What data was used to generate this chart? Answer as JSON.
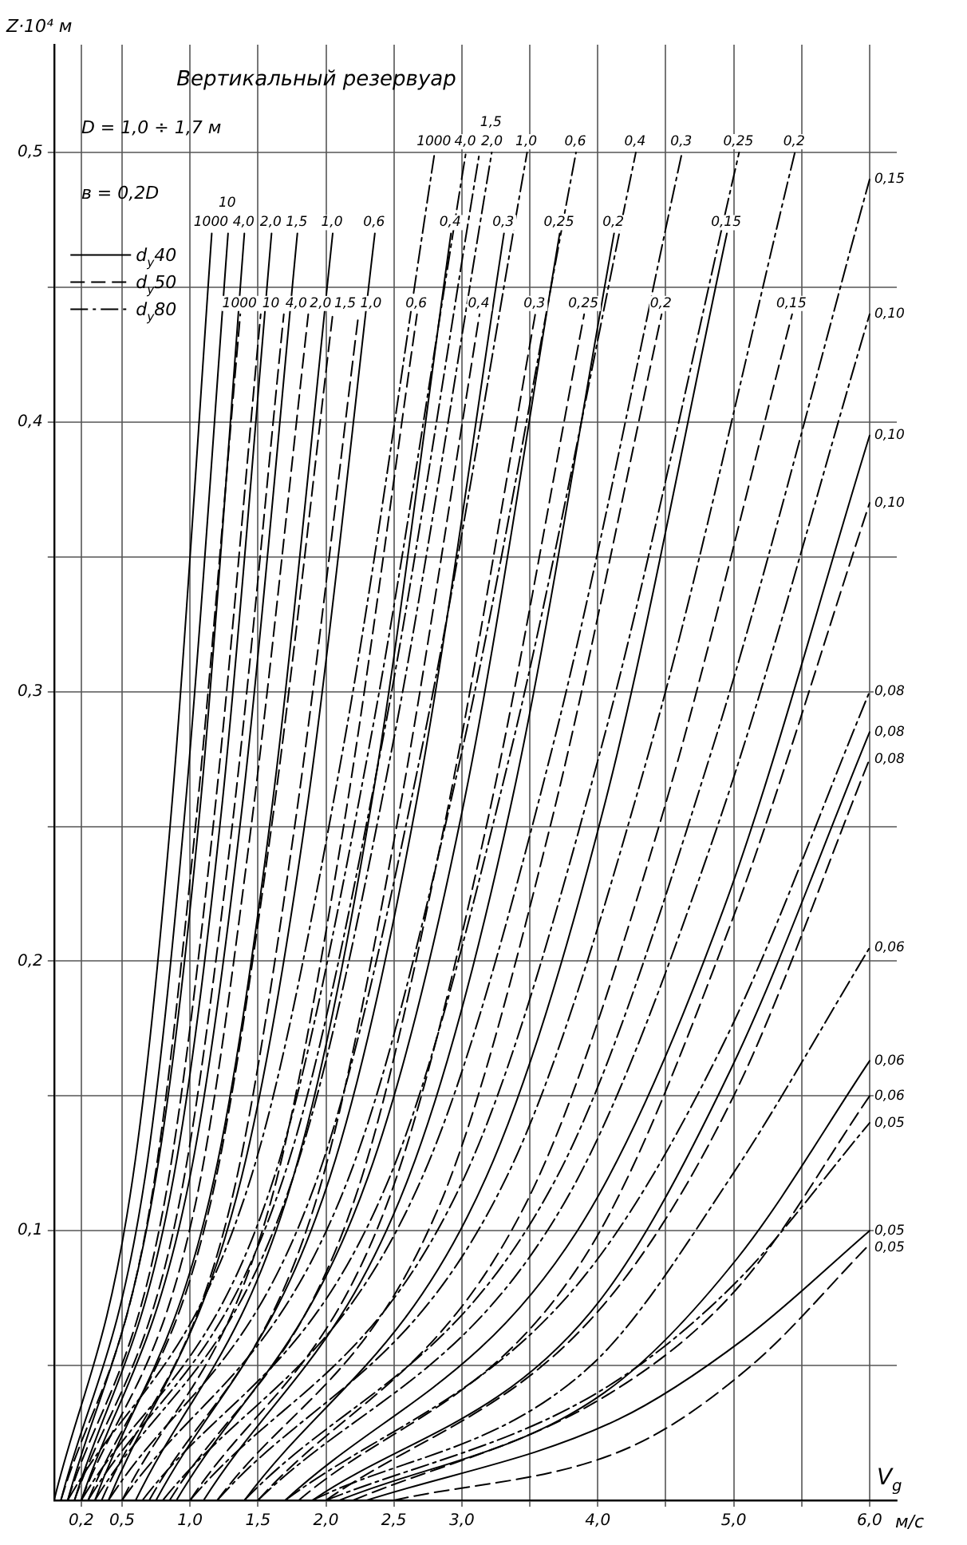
{
  "chart_data": {
    "type": "line",
    "title": "Вертикальный резервуар",
    "xlabel": "V$_{g}$",
    "ylabel": "Z·10⁴ м",
    "annotations": [
      "D = 1,0 ÷ 1,7 м",
      "в = 0,2D",
      "d$_{у}$40",
      "d$_{у}$50",
      "d$_{у}$80",
      "м/с"
    ],
    "xlim": [
      0,
      6.2
    ],
    "ylim": [
      0,
      0.54
    ],
    "xticks": [
      {
        "value": 0.2,
        "label": "0,2"
      },
      {
        "value": 0.5,
        "label": "0,5"
      },
      {
        "value": 1.0,
        "label": "1,0"
      },
      {
        "value": 1.5,
        "label": "1,5"
      },
      {
        "value": 2.0,
        "label": "2,0"
      },
      {
        "value": 2.5,
        "label": "2,5"
      },
      {
        "value": 3.0,
        "label": "3,0"
      },
      {
        "value": 3.5,
        "label": null
      },
      {
        "value": 4.0,
        "label": "4,0"
      },
      {
        "value": 4.5,
        "label": null
      },
      {
        "value": 5.0,
        "label": "5,0"
      },
      {
        "value": 5.5,
        "label": null
      },
      {
        "value": 6.0,
        "label": "6,0"
      }
    ],
    "yticks": [
      {
        "value": 0.05,
        "label": null
      },
      {
        "value": 0.1,
        "label": "0,1"
      },
      {
        "value": 0.15,
        "label": null
      },
      {
        "value": 0.2,
        "label": "0,2"
      },
      {
        "value": 0.25,
        "label": null
      },
      {
        "value": 0.3,
        "label": "0,3"
      },
      {
        "value": 0.35,
        "label": null
      },
      {
        "value": 0.4,
        "label": "0,4"
      },
      {
        "value": 0.45,
        "label": null
      },
      {
        "value": 0.5,
        "label": "0,5"
      }
    ],
    "grid": true,
    "series": [
      {
        "name": "1000",
        "color": "#000000",
        "line_style": "solid",
        "x": [
          0,
          0.58,
          0.87,
          1.16
        ],
        "values": [
          0,
          0.12,
          0.26,
          0.47
        ]
      },
      {
        "name": "10",
        "color": "#000000",
        "line_style": "solid",
        "x": [
          0.05,
          0.67,
          0.97,
          1.28
        ],
        "values": [
          0,
          0.12,
          0.26,
          0.47
        ]
      },
      {
        "name": "4,0",
        "color": "#000000",
        "line_style": "solid",
        "x": [
          0.1,
          0.75,
          1.08,
          1.4
        ],
        "values": [
          0,
          0.12,
          0.26,
          0.47
        ]
      },
      {
        "name": "2,0",
        "color": "#000000",
        "line_style": "solid",
        "x": [
          0.15,
          0.88,
          1.24,
          1.6
        ],
        "values": [
          0,
          0.12,
          0.26,
          0.47
        ]
      },
      {
        "name": "1,5",
        "color": "#000000",
        "line_style": "solid",
        "x": [
          0.2,
          1.0,
          1.39,
          1.79
        ],
        "values": [
          0,
          0.12,
          0.26,
          0.47
        ]
      },
      {
        "name": "1,0",
        "color": "#000000",
        "line_style": "solid",
        "x": [
          0.3,
          1.18,
          1.61,
          2.05
        ],
        "values": [
          0,
          0.12,
          0.26,
          0.47
        ]
      },
      {
        "name": "0,6",
        "color": "#000000",
        "line_style": "solid",
        "x": [
          0.4,
          1.38,
          1.87,
          2.36
        ],
        "values": [
          0,
          0.12,
          0.26,
          0.47
        ]
      },
      {
        "name": "0,4",
        "color": "#000000",
        "line_style": "solid",
        "x": [
          0.6,
          1.76,
          2.34,
          2.92
        ],
        "values": [
          0,
          0.12,
          0.26,
          0.47
        ]
      },
      {
        "name": "0,3",
        "color": "#000000",
        "line_style": "solid",
        "x": [
          0.75,
          2.03,
          2.67,
          3.31
        ],
        "values": [
          0,
          0.12,
          0.26,
          0.47
        ]
      },
      {
        "name": "0,25",
        "color": "#000000",
        "line_style": "solid",
        "x": [
          0.9,
          2.31,
          3.02,
          3.72
        ],
        "values": [
          0,
          0.12,
          0.26,
          0.47
        ]
      },
      {
        "name": "0,2",
        "color": "#000000",
        "line_style": "solid",
        "x": [
          1.1,
          2.61,
          3.37,
          4.12
        ],
        "values": [
          0,
          0.12,
          0.26,
          0.47
        ]
      },
      {
        "name": "0,15",
        "color": "#000000",
        "line_style": "solid",
        "x": [
          1.4,
          3.18,
          4.06,
          4.95
        ],
        "values": [
          0,
          0.12,
          0.26,
          0.47
        ]
      },
      {
        "name": "0,10",
        "color": "#000000",
        "line_style": "solid",
        "x": [
          1.7,
          3.85,
          4.93,
          6.0
        ],
        "values": [
          0,
          0.1,
          0.22,
          0.395
        ]
      },
      {
        "name": "0,08",
        "color": "#000000",
        "line_style": "solid",
        "x": [
          1.9,
          3.95,
          4.98,
          6.0
        ],
        "values": [
          0,
          0.07,
          0.16,
          0.285
        ]
      },
      {
        "name": "0,06",
        "color": "#000000",
        "line_style": "solid",
        "x": [
          2.1,
          4.05,
          5.03,
          6.0
        ],
        "values": [
          0,
          0.04,
          0.09,
          0.163
        ]
      },
      {
        "name": "0,05",
        "color": "#000000",
        "line_style": "solid",
        "x": [
          2.3,
          4.15,
          5.08,
          6.0
        ],
        "values": [
          0,
          0.03,
          0.06,
          0.1
        ]
      },
      {
        "name": "1000",
        "color": "#000000",
        "line_style": "dashed",
        "x": [
          0.05,
          0.71,
          1.04,
          1.37
        ],
        "values": [
          0,
          0.11,
          0.25,
          0.44
        ]
      },
      {
        "name": "10",
        "color": "#000000",
        "line_style": "dashed",
        "x": [
          0.1,
          0.81,
          1.17,
          1.52
        ],
        "values": [
          0,
          0.11,
          0.25,
          0.44
        ]
      },
      {
        "name": "4,0",
        "color": "#000000",
        "line_style": "dashed",
        "x": [
          0.15,
          0.92,
          1.31,
          1.69
        ],
        "values": [
          0,
          0.11,
          0.25,
          0.44
        ]
      },
      {
        "name": "2,0",
        "color": "#000000",
        "line_style": "dashed",
        "x": [
          0.2,
          1.04,
          1.45,
          1.87
        ],
        "values": [
          0,
          0.11,
          0.25,
          0.44
        ]
      },
      {
        "name": "1,5",
        "color": "#000000",
        "line_style": "dashed",
        "x": [
          0.25,
          1.15,
          1.6,
          2.05
        ],
        "values": [
          0,
          0.11,
          0.25,
          0.44
        ]
      },
      {
        "name": "1,0",
        "color": "#000000",
        "line_style": "dashed",
        "x": [
          0.35,
          1.3,
          1.77,
          2.24
        ],
        "values": [
          0,
          0.11,
          0.25,
          0.44
        ]
      },
      {
        "name": "0,6",
        "color": "#000000",
        "line_style": "dashed",
        "x": [
          0.5,
          1.59,
          2.13,
          2.67
        ],
        "values": [
          0,
          0.11,
          0.25,
          0.44
        ]
      },
      {
        "name": "0,4",
        "color": "#000000",
        "line_style": "dashed",
        "x": [
          0.7,
          1.92,
          2.52,
          3.13
        ],
        "values": [
          0,
          0.11,
          0.25,
          0.44
        ]
      },
      {
        "name": "0,3",
        "color": "#000000",
        "line_style": "dashed",
        "x": [
          0.85,
          2.2,
          2.87,
          3.54
        ],
        "values": [
          0,
          0.11,
          0.25,
          0.44
        ]
      },
      {
        "name": "0,25",
        "color": "#000000",
        "line_style": "dashed",
        "x": [
          1.0,
          2.45,
          3.18,
          3.9
        ],
        "values": [
          0,
          0.11,
          0.25,
          0.44
        ]
      },
      {
        "name": "0,2",
        "color": "#000000",
        "line_style": "dashed",
        "x": [
          1.2,
          2.84,
          3.65,
          4.47
        ],
        "values": [
          0,
          0.11,
          0.25,
          0.44
        ]
      },
      {
        "name": "0,15",
        "color": "#000000",
        "line_style": "dashed",
        "x": [
          1.5,
          3.47,
          4.45,
          5.43
        ],
        "values": [
          0,
          0.11,
          0.25,
          0.44
        ]
      },
      {
        "name": "0,10",
        "color": "#000000",
        "line_style": "dashed",
        "x": [
          1.8,
          3.9,
          4.95,
          6.0
        ],
        "values": [
          0,
          0.09,
          0.21,
          0.37
        ]
      },
      {
        "name": "0,08",
        "color": "#000000",
        "line_style": "dashed",
        "x": [
          2.0,
          4.0,
          5.0,
          6.0
        ],
        "values": [
          0,
          0.07,
          0.15,
          0.275
        ]
      },
      {
        "name": "0,06",
        "color": "#000000",
        "line_style": "dashed",
        "x": [
          2.2,
          4.1,
          5.05,
          6.0
        ],
        "values": [
          0,
          0.04,
          0.08,
          0.15
        ]
      },
      {
        "name": "0,05",
        "color": "#000000",
        "line_style": "dashed",
        "x": [
          2.5,
          4.25,
          5.13,
          6.0
        ],
        "values": [
          0,
          0.02,
          0.05,
          0.095
        ]
      },
      {
        "name": "1000",
        "color": "#000000",
        "line_style": "dashdot",
        "x": [
          0.1,
          1.45,
          2.13,
          2.8
        ],
        "values": [
          0,
          0.12,
          0.28,
          0.5
        ]
      },
      {
        "name": "4,0",
        "color": "#000000",
        "line_style": "dashdot",
        "x": [
          0.2,
          1.62,
          2.32,
          3.03
        ],
        "values": [
          0,
          0.12,
          0.28,
          0.5
        ]
      },
      {
        "name": "2,0",
        "color": "#000000",
        "line_style": "dashdot",
        "x": [
          0.25,
          1.69,
          2.41,
          3.13
        ],
        "values": [
          0,
          0.12,
          0.28,
          0.5
        ]
      },
      {
        "name": "1,5",
        "color": "#000000",
        "line_style": "dashdot",
        "x": [
          0.3,
          1.76,
          2.49,
          3.22
        ],
        "values": [
          0,
          0.12,
          0.28,
          0.5
        ]
      },
      {
        "name": "1,0",
        "color": "#000000",
        "line_style": "dashdot",
        "x": [
          0.4,
          1.94,
          2.71,
          3.48
        ],
        "values": [
          0,
          0.12,
          0.28,
          0.5
        ]
      },
      {
        "name": "0,6",
        "color": "#000000",
        "line_style": "dashdot",
        "x": [
          0.5,
          2.17,
          3.01,
          3.84
        ],
        "values": [
          0,
          0.12,
          0.28,
          0.5
        ]
      },
      {
        "name": "0,4",
        "color": "#000000",
        "line_style": "dashdot",
        "x": [
          0.65,
          2.47,
          3.37,
          4.28
        ],
        "values": [
          0,
          0.12,
          0.28,
          0.5
        ]
      },
      {
        "name": "0,3",
        "color": "#000000",
        "line_style": "dashdot",
        "x": [
          0.8,
          2.71,
          3.67,
          4.62
        ],
        "values": [
          0,
          0.12,
          0.28,
          0.5
        ]
      },
      {
        "name": "0,25",
        "color": "#000000",
        "line_style": "dashdot",
        "x": [
          1.0,
          3.02,
          4.03,
          5.04
        ],
        "values": [
          0,
          0.12,
          0.28,
          0.5
        ]
      },
      {
        "name": "0,2",
        "color": "#000000",
        "line_style": "dashdot",
        "x": [
          1.2,
          3.33,
          4.39,
          5.45
        ],
        "values": [
          0,
          0.12,
          0.28,
          0.5
        ]
      },
      {
        "name": "0,15",
        "color": "#000000",
        "line_style": "dashdot",
        "x": [
          1.4,
          3.7,
          4.85,
          6.0
        ],
        "values": [
          0,
          0.12,
          0.28,
          0.49
        ]
      },
      {
        "name": "0,10",
        "color": "#000000",
        "line_style": "dashdot",
        "x": [
          1.5,
          3.75,
          4.88,
          6.0
        ],
        "values": [
          0,
          0.11,
          0.25,
          0.44
        ]
      },
      {
        "name": "0,08",
        "color": "#000000",
        "line_style": "dashdot",
        "x": [
          1.7,
          3.85,
          4.93,
          6.0
        ],
        "values": [
          0,
          0.08,
          0.17,
          0.3
        ]
      },
      {
        "name": "0,06",
        "color": "#000000",
        "line_style": "dashdot",
        "x": [
          1.9,
          3.95,
          4.98,
          6.0
        ],
        "values": [
          0,
          0.05,
          0.12,
          0.205
        ]
      },
      {
        "name": "0,05",
        "color": "#000000",
        "line_style": "dashdot",
        "x": [
          2.0,
          4.0,
          5.0,
          6.0
        ],
        "values": [
          0,
          0.04,
          0.08,
          0.14
        ]
      }
    ]
  }
}
